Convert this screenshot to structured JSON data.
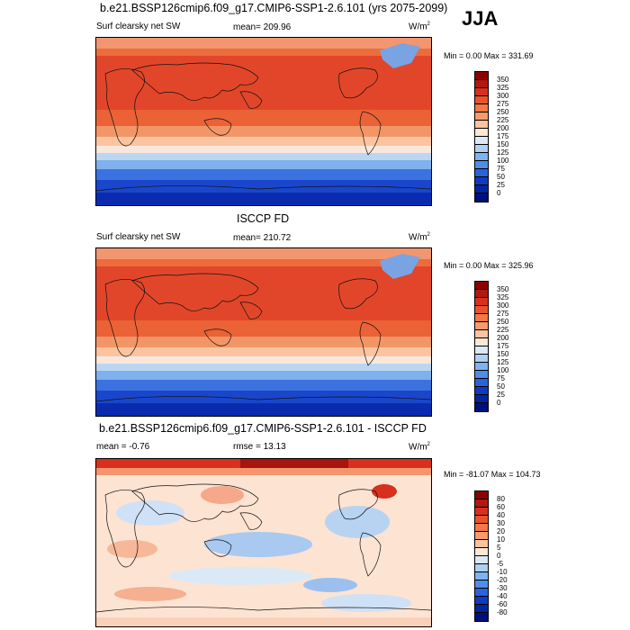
{
  "season": "JJA",
  "panels": [
    {
      "title": "b.e21.BSSP126cmip6.f09_g17.CMIP6-SSP1-2.6.101 (yrs 2075-2099)",
      "left_label": "Surf clearsky net SW",
      "center_label": "mean= 209.96",
      "units": "W/m",
      "units_sup": "2",
      "minmax": "Min =   0.00 Max = 331.69",
      "colorbar": {
        "labels": [
          "350",
          "325",
          "300",
          "275",
          "250",
          "225",
          "200",
          "175",
          "150",
          "125",
          "100",
          "75",
          "50",
          "25",
          "0"
        ],
        "colors": [
          "#8b0000",
          "#b2180e",
          "#d7301f",
          "#e9532b",
          "#f47846",
          "#f99a6b",
          "#fcc3a0",
          "#fde8d6",
          "#dbe9f6",
          "#aed0f2",
          "#7db3f0",
          "#4f8ee8",
          "#2b63dd",
          "#1239c4",
          "#00259e",
          "#00107a"
        ]
      },
      "map_colors": {
        "band_tropic": "#e4502a",
        "band_mid": "#f08a5e",
        "band_high": "#dce8f5",
        "band_polar": "#1e4fd0",
        "band_south": "#0d2fb5"
      }
    },
    {
      "title": "ISCCP FD",
      "left_label": "Surf clearsky net SW",
      "center_label": "mean= 210.72",
      "units": "W/m",
      "units_sup": "2",
      "minmax": "Min =   0.00 Max = 325.96",
      "colorbar": {
        "labels": [
          "350",
          "325",
          "300",
          "275",
          "250",
          "225",
          "200",
          "175",
          "150",
          "125",
          "100",
          "75",
          "50",
          "25",
          "0"
        ],
        "colors": [
          "#8b0000",
          "#b2180e",
          "#d7301f",
          "#e9532b",
          "#f47846",
          "#f99a6b",
          "#fcc3a0",
          "#fde8d6",
          "#dbe9f6",
          "#aed0f2",
          "#7db3f0",
          "#4f8ee8",
          "#2b63dd",
          "#1239c4",
          "#00259e",
          "#00107a"
        ]
      }
    },
    {
      "title": "b.e21.BSSP126cmip6.f09_g17.CMIP6-SSP1-2.6.101 - ISCCP FD",
      "left_label": "mean =  -0.76",
      "center_label": "rmse =  13.13",
      "units": "W/m",
      "units_sup": "2",
      "minmax": "Min = -81.07 Max = 104.73",
      "colorbar": {
        "labels": [
          "80",
          "60",
          "40",
          "30",
          "20",
          "10",
          "5",
          "0",
          "-5",
          "-10",
          "-20",
          "-30",
          "-40",
          "-60",
          "-80"
        ],
        "colors": [
          "#8b0000",
          "#b2180e",
          "#d7301f",
          "#e9532b",
          "#f47846",
          "#f99a6b",
          "#fcc3a0",
          "#fde8d6",
          "#dbe9f6",
          "#aed0f2",
          "#7db3f0",
          "#4f8ee8",
          "#2b63dd",
          "#1239c4",
          "#00259e",
          "#00107a"
        ]
      }
    }
  ]
}
